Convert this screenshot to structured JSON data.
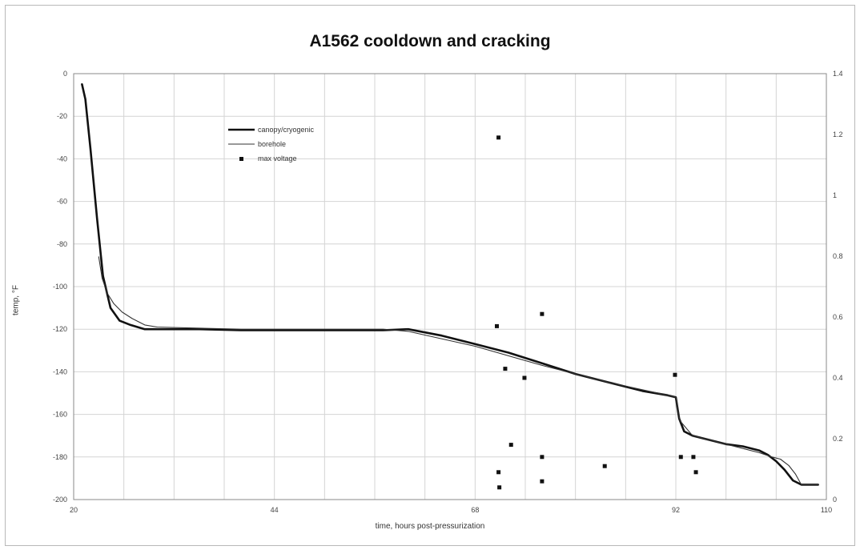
{
  "chart_data": {
    "type": "line",
    "title": "A1562 cooldown and cracking",
    "xlabel": "time, hours post-pressurization",
    "ylabel": "temp, °F",
    "xlim": [
      20,
      110
    ],
    "ylim": [
      -200,
      0
    ],
    "y2lim": [
      0,
      1.4
    ],
    "x_ticks": [
      "20",
      "44",
      "68",
      "92",
      "110"
    ],
    "y_ticks": [
      "0",
      "-20",
      "-40",
      "-60",
      "-80",
      "-100",
      "-120",
      "-140",
      "-160",
      "-180",
      "-200"
    ],
    "y2_ticks": [
      "1.4",
      "1.2",
      "1",
      "0.8",
      "0.6",
      "0.4",
      "0.2",
      "0"
    ],
    "grid": true,
    "legend_position": "top-left",
    "series": [
      {
        "name": "canopy/cryogenic",
        "axis": "left",
        "style": "thick",
        "color": "#111111",
        "x": [
          21.0,
          21.4,
          22.0,
          22.8,
          23.5,
          24.4,
          25.5,
          26.8,
          28.5,
          30.0,
          35,
          40,
          45,
          50,
          54,
          57,
          60,
          64,
          68,
          72,
          76,
          80,
          84,
          88,
          91,
          92.0,
          92.4,
          93.0,
          94.0,
          96,
          98,
          100,
          102,
          103,
          104,
          105,
          106,
          107,
          108,
          109
        ],
        "y": [
          -5,
          -12,
          -35,
          -68,
          -95,
          -110,
          -116,
          -118,
          -120,
          -120,
          -120,
          -120.5,
          -120.5,
          -120.5,
          -120.5,
          -120.5,
          -120,
          -123,
          -127,
          -131,
          -136,
          -141,
          -145,
          -149,
          -151,
          -152,
          -162,
          -168,
          -170,
          -172,
          -174,
          -175,
          -177,
          -179,
          -182,
          -186,
          -191,
          -193,
          -193,
          -193
        ]
      },
      {
        "name": "borehole",
        "axis": "left",
        "style": "thin",
        "color": "#333333",
        "x": [
          23.0,
          23.4,
          24.0,
          24.8,
          25.8,
          27.0,
          28.5,
          30,
          40,
          50,
          57,
          60,
          68,
          76,
          84,
          91,
          92.0,
          92.5,
          94,
          98,
          102,
          103.5,
          104.5,
          105.5,
          106.3,
          107,
          108,
          109
        ],
        "y": [
          -86,
          -96,
          -103,
          -108,
          -112,
          -115,
          -118,
          -119,
          -120,
          -120,
          -120,
          -121,
          -128,
          -137,
          -145,
          -151,
          -152,
          -163,
          -170,
          -174,
          -178,
          -180,
          -181,
          -184,
          -188,
          -193,
          -193,
          -193
        ]
      },
      {
        "name": "max voltage",
        "axis": "right",
        "type": "scatter",
        "color": "#111111",
        "x": [
          70.8,
          70.6,
          71.6,
          73.9,
          72.3,
          70.8,
          70.9,
          76.0,
          76.0,
          76.0,
          83.5,
          91.9,
          92.6,
          94.1,
          94.4
        ],
        "y": [
          1.19,
          0.57,
          0.43,
          0.4,
          0.18,
          0.09,
          0.04,
          0.61,
          0.14,
          0.06,
          0.11,
          0.41,
          0.14,
          0.14,
          0.09
        ]
      }
    ]
  }
}
